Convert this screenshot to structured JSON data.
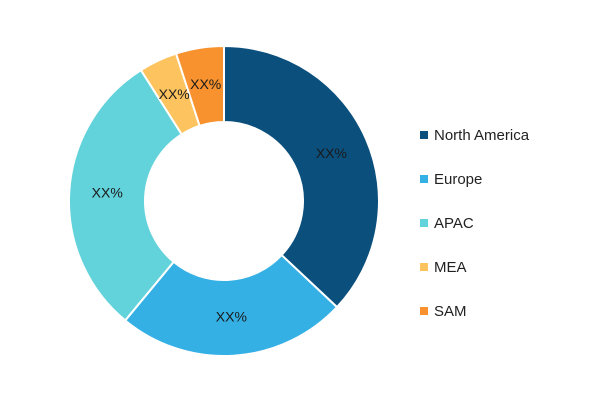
{
  "chart_data": {
    "type": "pie",
    "variant": "donut",
    "categories": [
      "North America",
      "Europe",
      "APAC",
      "MEA",
      "SAM"
    ],
    "values": [
      37,
      24,
      30,
      4,
      5
    ],
    "data_labels": [
      "XX%",
      "XX%",
      "XX%",
      "XX%",
      "XX%"
    ],
    "colors": [
      "#0b4f7d",
      "#35b0e5",
      "#62d2db",
      "#fcc35e",
      "#f7922e"
    ],
    "legend_position": "right"
  }
}
